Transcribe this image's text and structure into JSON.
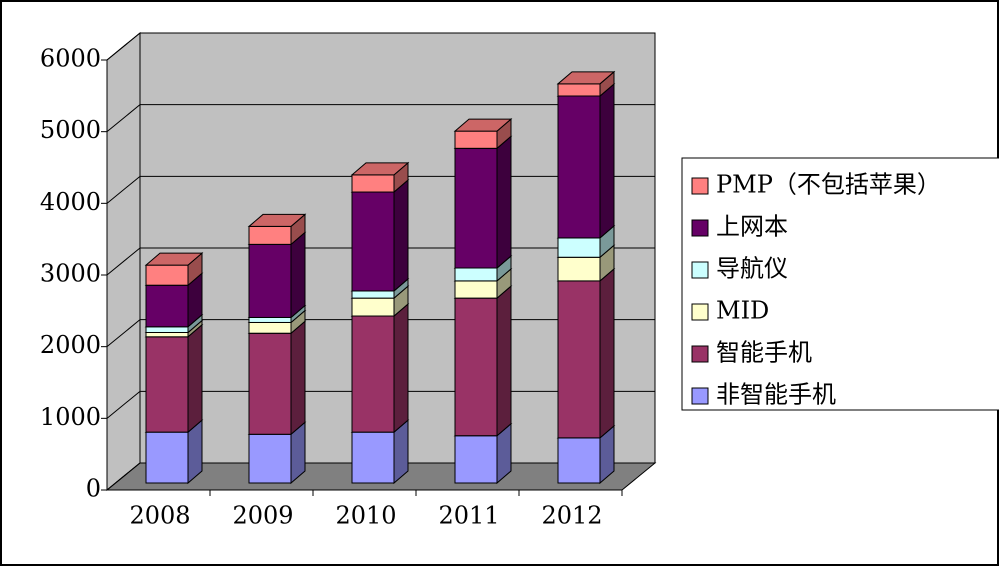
{
  "chart_data": {
    "type": "bar",
    "stacked": true,
    "three_d": true,
    "categories": [
      "2008",
      "2009",
      "2010",
      "2011",
      "2012"
    ],
    "series": [
      {
        "name": "非智能手机",
        "color": "#9999ff",
        "values": [
          710,
          680,
          710,
          660,
          630
        ]
      },
      {
        "name": "智能手机",
        "color": "#993366",
        "values": [
          1330,
          1410,
          1620,
          1920,
          2190
        ]
      },
      {
        "name": "MID",
        "color": "#ffffcc",
        "values": [
          60,
          150,
          250,
          240,
          330
        ]
      },
      {
        "name": "导航仪",
        "color": "#ccffff",
        "values": [
          80,
          70,
          100,
          180,
          270
        ]
      },
      {
        "name": "上网本",
        "color": "#660066",
        "values": [
          580,
          1020,
          1380,
          1670,
          1980
        ]
      },
      {
        "name": "PMP（不包括苹果）",
        "color": "#ff8080",
        "values": [
          280,
          250,
          240,
          240,
          170
        ]
      }
    ],
    "ylim": [
      0,
      6000
    ],
    "yticks": [
      0,
      1000,
      2000,
      3000,
      4000,
      5000,
      6000
    ],
    "grid": true,
    "legend": "right"
  }
}
